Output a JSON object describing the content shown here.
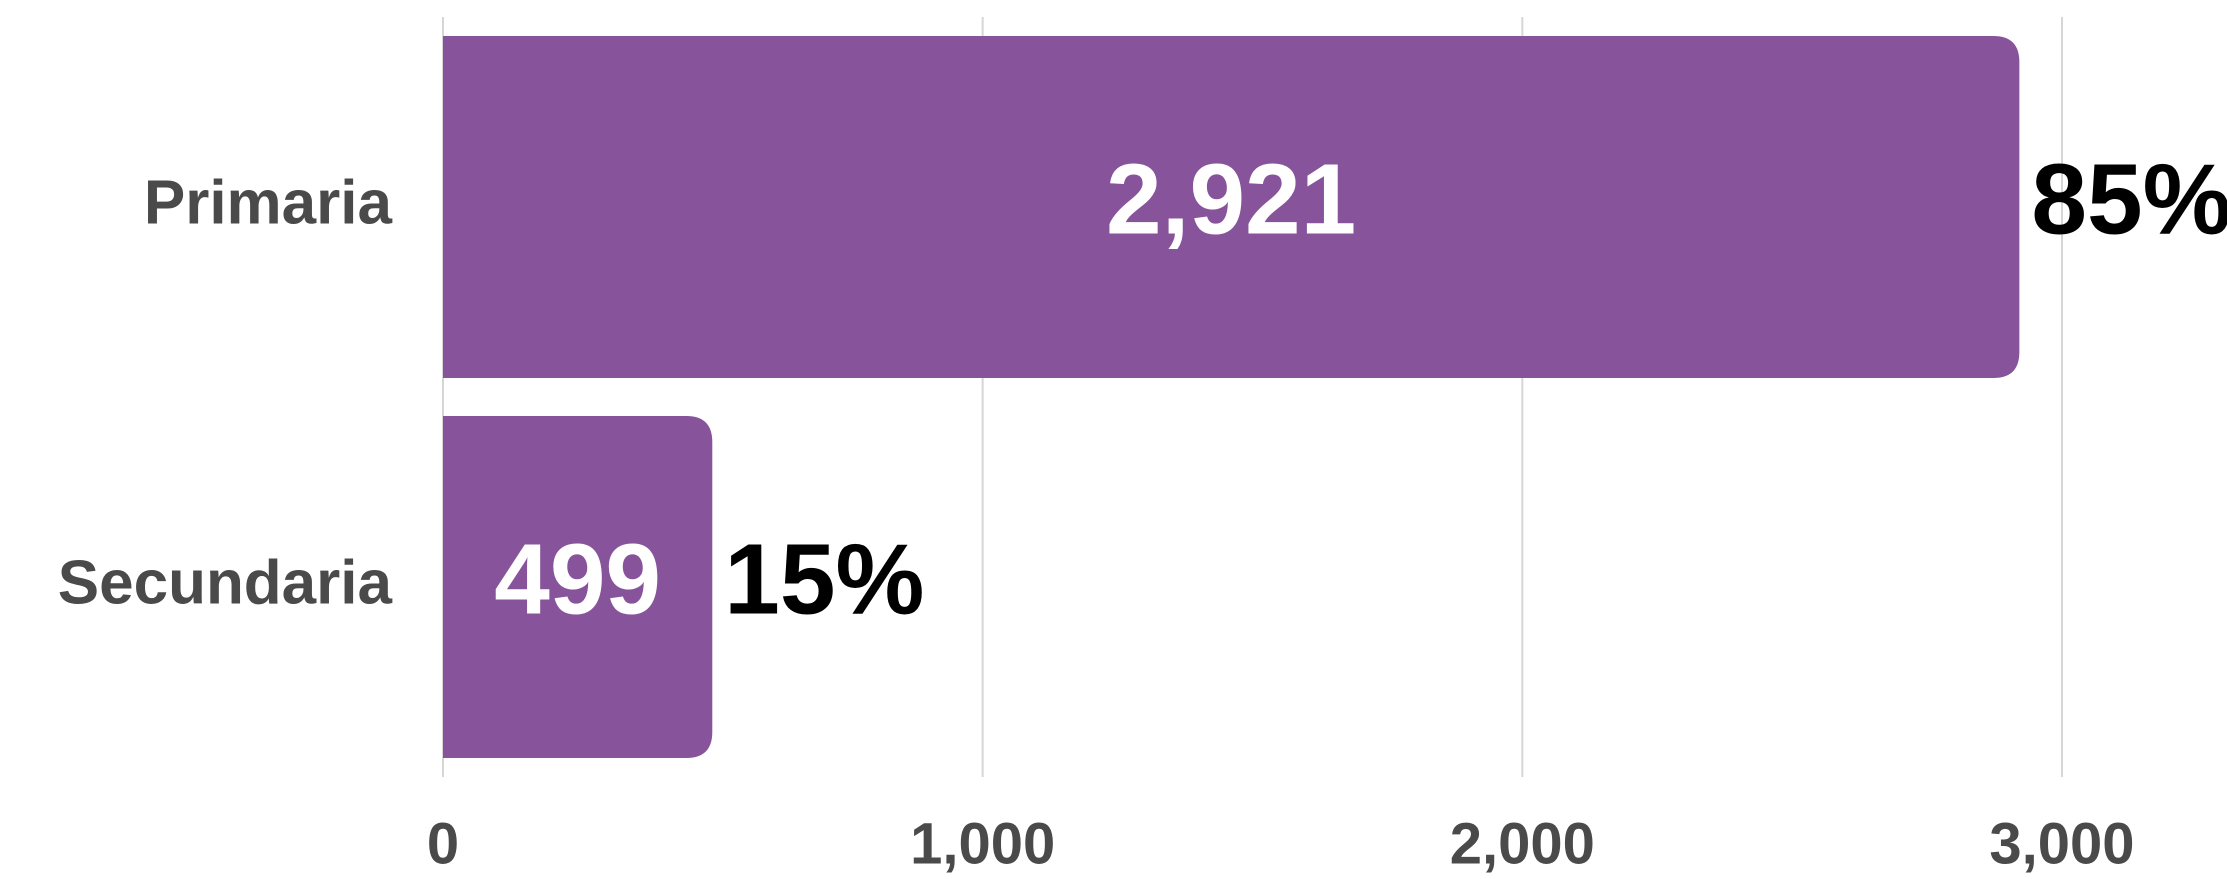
{
  "chart_data": {
    "type": "hbar",
    "categories": [
      "Primaria",
      "Secundaria"
    ],
    "values": [
      2921,
      499
    ],
    "value_labels": [
      "2,921",
      "499"
    ],
    "percent_labels": [
      "85%",
      "15%"
    ],
    "color": "#87539b",
    "xlim": [
      0,
      3000
    ],
    "xticks": [
      0,
      {
        "value": 1000,
        "label": "1,000"
      },
      {
        "value": 2000,
        "label": "2,000"
      },
      {
        "value": 3000,
        "label": "3,000"
      }
    ],
    "grid": true
  }
}
